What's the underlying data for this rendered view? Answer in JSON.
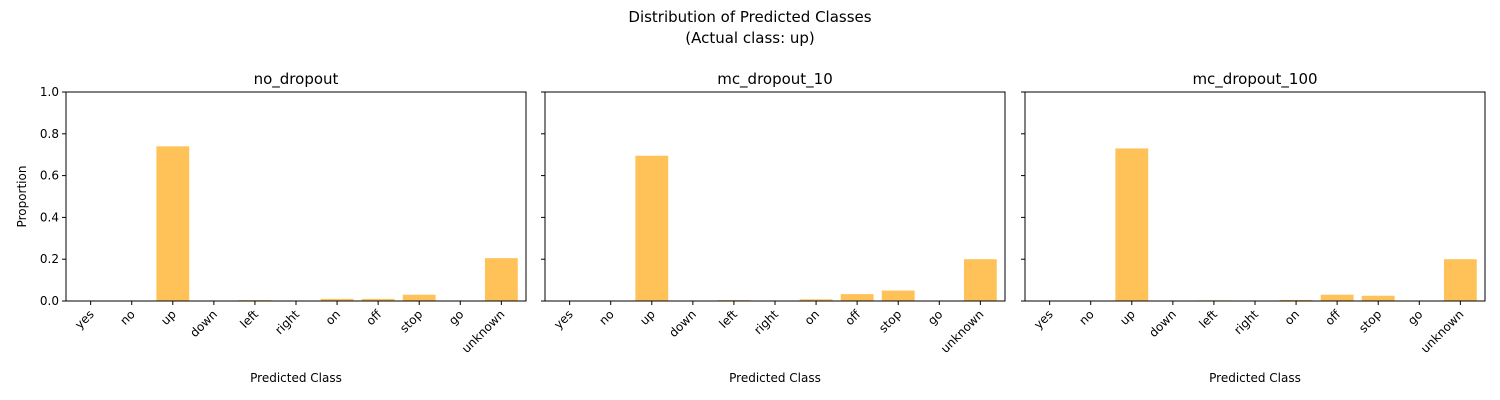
{
  "figure": {
    "title_line1": "Distribution of Predicted Classes",
    "title_line2": "(Actual class: up)"
  },
  "chart_data": [
    {
      "type": "bar",
      "title": "no_dropout",
      "xlabel": "Predicted Class",
      "ylabel": "Proportion",
      "ylim": [
        0,
        1
      ],
      "yticks": [
        "0.0",
        "0.2",
        "0.4",
        "0.6",
        "0.8",
        "1.0"
      ],
      "categories": [
        "yes",
        "no",
        "up",
        "down",
        "left",
        "right",
        "on",
        "off",
        "stop",
        "go",
        "unknown"
      ],
      "values": [
        0.0,
        0.0,
        0.74,
        0.0,
        0.004,
        0.0,
        0.01,
        0.01,
        0.03,
        0.0,
        0.205
      ],
      "bar_color": "#FFBF4F"
    },
    {
      "type": "bar",
      "title": "mc_dropout_10",
      "xlabel": "Predicted Class",
      "ylabel": "",
      "ylim": [
        0,
        1
      ],
      "yticks": [
        "0.0",
        "0.2",
        "0.4",
        "0.6",
        "0.8",
        "1.0"
      ],
      "categories": [
        "yes",
        "no",
        "up",
        "down",
        "left",
        "right",
        "on",
        "off",
        "stop",
        "go",
        "unknown"
      ],
      "values": [
        0.0,
        0.0,
        0.695,
        0.0,
        0.004,
        0.0,
        0.008,
        0.033,
        0.05,
        0.0,
        0.2
      ],
      "bar_color": "#FFBF4F"
    },
    {
      "type": "bar",
      "title": "mc_dropout_100",
      "xlabel": "Predicted Class",
      "ylabel": "",
      "ylim": [
        0,
        1
      ],
      "yticks": [
        "0.0",
        "0.2",
        "0.4",
        "0.6",
        "0.8",
        "1.0"
      ],
      "categories": [
        "yes",
        "no",
        "up",
        "down",
        "left",
        "right",
        "on",
        "off",
        "stop",
        "go",
        "unknown"
      ],
      "values": [
        0.0,
        0.0,
        0.73,
        0.0,
        0.003,
        0.0,
        0.005,
        0.03,
        0.025,
        0.0,
        0.2
      ],
      "bar_color": "#FFBF4F"
    }
  ]
}
